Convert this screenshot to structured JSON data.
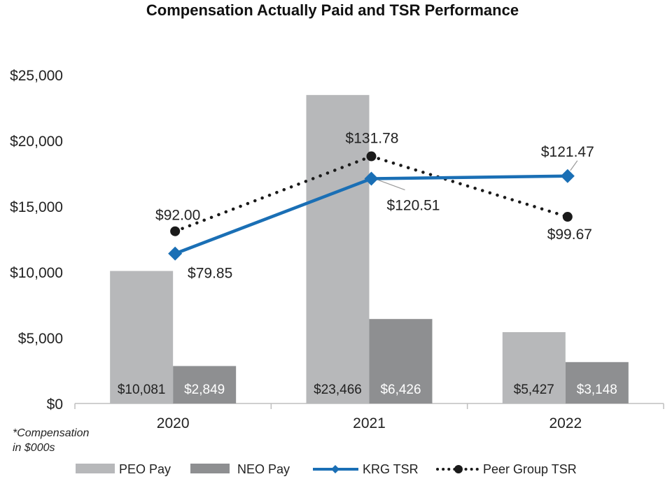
{
  "chart_data": {
    "type": "bar+line",
    "title": "Compensation Actually Paid and TSR Performance",
    "categories": [
      "2020",
      "2021",
      "2022"
    ],
    "ylim": [
      0,
      25000
    ],
    "yticks": [
      0,
      5000,
      10000,
      15000,
      20000,
      25000
    ],
    "ytick_labels": [
      "$0",
      "$5,000",
      "$10,000",
      "$15,000",
      "$20,000",
      "$25,000"
    ],
    "bar_series": [
      {
        "name": "PEO Pay",
        "values": [
          10081,
          23466,
          5427
        ],
        "labels": [
          "$10,081",
          "$23,466",
          "$5,427"
        ],
        "color": "#b7b8ba",
        "label_color": "#222222"
      },
      {
        "name": "NEO Pay",
        "values": [
          2849,
          6426,
          3148
        ],
        "labels": [
          "$2,849",
          "$6,426",
          "$3,148"
        ],
        "color": "#8e8f91",
        "label_color": "#ffffff"
      }
    ],
    "line_series": [
      {
        "name": "KRG TSR",
        "values": [
          79.85,
          120.51,
          121.47
        ],
        "labels": [
          "$79.85",
          "$120.51",
          "$121.47"
        ],
        "plot_values": [
          11400,
          17100,
          17300
        ],
        "color": "#1a6fb5",
        "style": "solid",
        "marker": "diamond"
      },
      {
        "name": "Peer Group TSR",
        "values": [
          92.0,
          131.78,
          99.67
        ],
        "labels": [
          "$92.00",
          "$131.78",
          "$99.67"
        ],
        "plot_values": [
          13100,
          18800,
          14200
        ],
        "color": "#1a1a1a",
        "style": "dotted",
        "marker": "circle"
      }
    ],
    "footnote_lines": [
      "*Compensation",
      "in $000s"
    ],
    "legend_position": "bottom",
    "grid": false
  }
}
